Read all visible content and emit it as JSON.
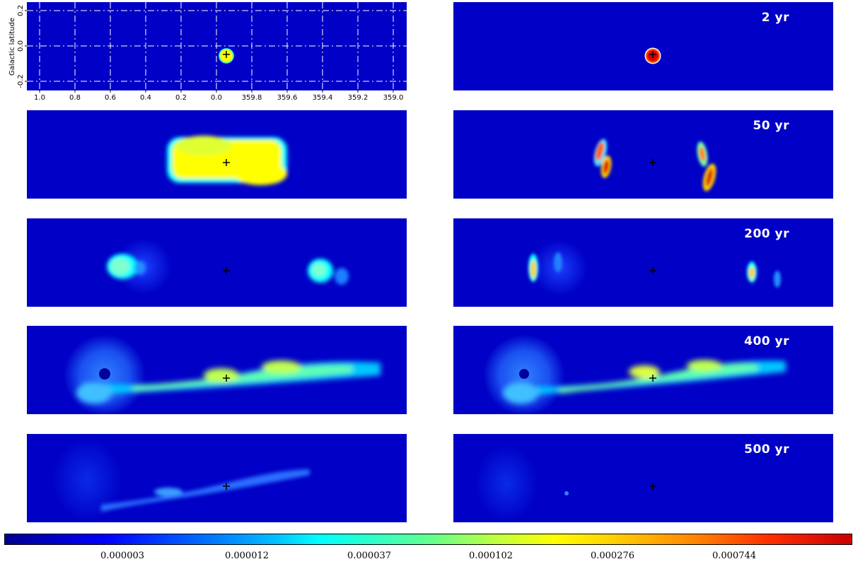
{
  "chart_data": {
    "type": "heatmap",
    "ylabel": "Galactic latitude",
    "x_tick_labels": [
      "1.0",
      "0.8",
      "0.6",
      "0.4",
      "0.2",
      "0.0",
      "359.8",
      "359.6",
      "359.4",
      "359.2",
      "359.0"
    ],
    "y_tick_labels": [
      "0.2",
      "0.0",
      "-0.2"
    ],
    "grid": true,
    "colormap": "jet",
    "colorbar_scale": "log",
    "colorbar_tick_labels": [
      "0.000003",
      "0.000012",
      "0.000037",
      "0.000102",
      "0.000276",
      "0.000744"
    ],
    "time_labels": [
      "2 yr",
      "50 yr",
      "200 yr",
      "400 yr",
      "500 yr"
    ],
    "colors": {
      "background": "#0000c6",
      "low": "#00008f",
      "cyan": "#00ffff",
      "yellow": "#ffff00",
      "red": "#c80000",
      "grid": "#ffffff",
      "marker": "#000000"
    }
  }
}
